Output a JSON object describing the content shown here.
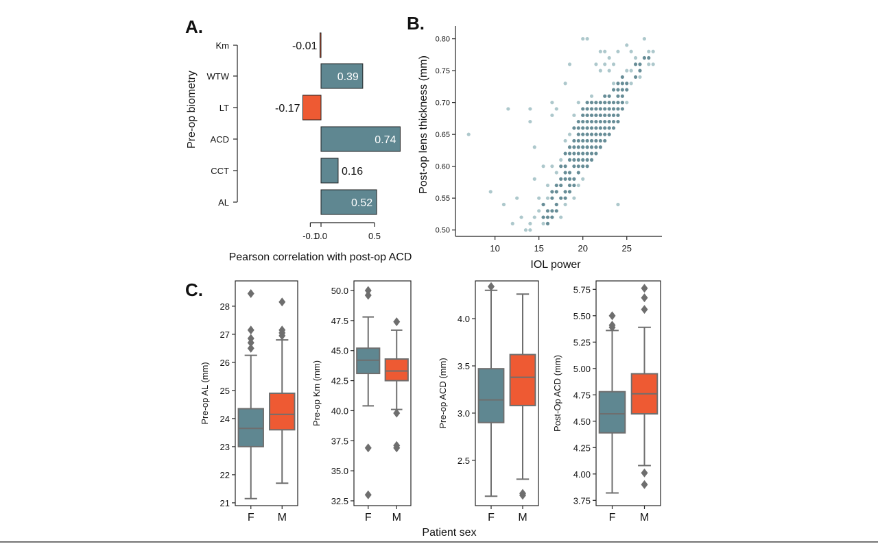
{
  "colors": {
    "teal": "#5f8791",
    "orange": "#ee5a33",
    "scatter_light": "#a9c5c9",
    "scatter_dark": "#5f8791",
    "box_line": "#6e6e6e"
  },
  "chart_data": [
    {
      "panel": "A.",
      "type": "bar",
      "orientation": "horizontal",
      "ylabel": "Pre-op biometry",
      "xlabel": "Pearson correlation with post-op ACD",
      "xticks": [
        "-0.1",
        "0.0",
        "0.5"
      ],
      "xtick_values": [
        -0.1,
        0.0,
        0.5
      ],
      "categories": [
        "Km",
        "WTW",
        "LT",
        "ACD",
        "CCT",
        "AL"
      ],
      "values": [
        -0.01,
        0.39,
        -0.17,
        0.74,
        0.16,
        0.52
      ],
      "value_labels": [
        "-0.01",
        "0.39",
        "-0.17",
        "0.74",
        "0.16",
        "0.52"
      ],
      "bar_colors": [
        "orange",
        "teal",
        "orange",
        "teal",
        "teal",
        "teal"
      ]
    },
    {
      "panel": "B.",
      "type": "scatter",
      "xlabel": "IOL power",
      "ylabel": "Post-op lens thickness (mm)",
      "xlim": [
        5.5,
        29
      ],
      "ylim": [
        0.49,
        0.82
      ],
      "xticks": [
        "10",
        "15",
        "20",
        "25"
      ],
      "xtick_values": [
        10,
        15,
        20,
        25
      ],
      "yticks": [
        "0.50",
        "0.55",
        "0.60",
        "0.65",
        "0.70",
        "0.75",
        "0.80"
      ],
      "ytick_values": [
        0.5,
        0.55,
        0.6,
        0.65,
        0.7,
        0.75,
        0.8
      ],
      "points": [
        [
          7,
          0.65
        ],
        [
          9.5,
          0.56
        ],
        [
          11,
          0.54
        ],
        [
          11.5,
          0.69
        ],
        [
          12,
          0.51
        ],
        [
          12.5,
          0.55
        ],
        [
          13,
          0.52
        ],
        [
          13.5,
          0.5
        ],
        [
          14,
          0.51
        ],
        [
          14,
          0.5
        ],
        [
          14.5,
          0.52
        ],
        [
          14,
          0.69
        ],
        [
          14,
          0.67
        ],
        [
          14.5,
          0.58
        ],
        [
          14.5,
          0.63
        ],
        [
          15,
          0.55
        ],
        [
          15,
          0.53
        ],
        [
          15.5,
          0.52
        ],
        [
          15.5,
          0.51
        ],
        [
          15.5,
          0.54
        ],
        [
          15.5,
          0.6
        ],
        [
          16,
          0.53
        ],
        [
          16,
          0.52
        ],
        [
          16,
          0.51
        ],
        [
          16,
          0.55
        ],
        [
          16,
          0.57
        ],
        [
          16.5,
          0.56
        ],
        [
          16.5,
          0.53
        ],
        [
          16.5,
          0.52
        ],
        [
          16.5,
          0.55
        ],
        [
          16.5,
          0.6
        ],
        [
          16.5,
          0.68
        ],
        [
          16.5,
          0.7
        ],
        [
          17,
          0.53
        ],
        [
          17,
          0.54
        ],
        [
          17,
          0.56
        ],
        [
          17,
          0.57
        ],
        [
          17,
          0.59
        ],
        [
          17,
          0.69
        ],
        [
          17.5,
          0.55
        ],
        [
          17.5,
          0.52
        ],
        [
          17.5,
          0.57
        ],
        [
          17.5,
          0.58
        ],
        [
          17.5,
          0.6
        ],
        [
          17.5,
          0.61
        ],
        [
          18,
          0.54
        ],
        [
          18,
          0.55
        ],
        [
          18,
          0.56
        ],
        [
          18,
          0.58
        ],
        [
          18,
          0.59
        ],
        [
          18,
          0.6
        ],
        [
          18,
          0.62
        ],
        [
          18,
          0.64
        ],
        [
          18,
          0.73
        ],
        [
          18.5,
          0.56
        ],
        [
          18.5,
          0.58
        ],
        [
          18.5,
          0.57
        ],
        [
          18.5,
          0.59
        ],
        [
          18.5,
          0.61
        ],
        [
          18.5,
          0.62
        ],
        [
          18.5,
          0.63
        ],
        [
          18.5,
          0.65
        ],
        [
          18.5,
          0.76
        ],
        [
          19,
          0.55
        ],
        [
          19,
          0.57
        ],
        [
          19,
          0.58
        ],
        [
          19,
          0.6
        ],
        [
          19,
          0.61
        ],
        [
          19,
          0.62
        ],
        [
          19,
          0.63
        ],
        [
          19,
          0.64
        ],
        [
          19,
          0.66
        ],
        [
          19,
          0.68
        ],
        [
          19.5,
          0.57
        ],
        [
          19.5,
          0.59
        ],
        [
          19.5,
          0.6
        ],
        [
          19.5,
          0.61
        ],
        [
          19.5,
          0.62
        ],
        [
          19.5,
          0.63
        ],
        [
          19.5,
          0.64
        ],
        [
          19.5,
          0.65
        ],
        [
          19.5,
          0.66
        ],
        [
          19.5,
          0.67
        ],
        [
          19.5,
          0.7
        ],
        [
          20,
          0.58
        ],
        [
          20,
          0.6
        ],
        [
          20,
          0.61
        ],
        [
          20,
          0.62
        ],
        [
          20,
          0.63
        ],
        [
          20,
          0.64
        ],
        [
          20,
          0.65
        ],
        [
          20,
          0.66
        ],
        [
          20,
          0.67
        ],
        [
          20,
          0.68
        ],
        [
          20,
          0.69
        ],
        [
          20,
          0.8
        ],
        [
          20.5,
          0.6
        ],
        [
          20.5,
          0.61
        ],
        [
          20.5,
          0.62
        ],
        [
          20.5,
          0.63
        ],
        [
          20.5,
          0.64
        ],
        [
          20.5,
          0.65
        ],
        [
          20.5,
          0.66
        ],
        [
          20.5,
          0.67
        ],
        [
          20.5,
          0.68
        ],
        [
          20.5,
          0.69
        ],
        [
          20.5,
          0.7
        ],
        [
          20.5,
          0.8
        ],
        [
          21,
          0.61
        ],
        [
          21,
          0.62
        ],
        [
          21,
          0.63
        ],
        [
          21,
          0.64
        ],
        [
          21,
          0.65
        ],
        [
          21,
          0.66
        ],
        [
          21,
          0.67
        ],
        [
          21,
          0.68
        ],
        [
          21,
          0.69
        ],
        [
          21,
          0.7
        ],
        [
          21,
          0.71
        ],
        [
          21.5,
          0.62
        ],
        [
          21.5,
          0.63
        ],
        [
          21.5,
          0.64
        ],
        [
          21.5,
          0.65
        ],
        [
          21.5,
          0.66
        ],
        [
          21.5,
          0.67
        ],
        [
          21.5,
          0.68
        ],
        [
          21.5,
          0.69
        ],
        [
          21.5,
          0.7
        ],
        [
          21.5,
          0.76
        ],
        [
          22,
          0.63
        ],
        [
          22,
          0.64
        ],
        [
          22,
          0.65
        ],
        [
          22,
          0.66
        ],
        [
          22,
          0.67
        ],
        [
          22,
          0.68
        ],
        [
          22,
          0.69
        ],
        [
          22,
          0.7
        ],
        [
          22,
          0.75
        ],
        [
          22,
          0.78
        ],
        [
          22.5,
          0.64
        ],
        [
          22.5,
          0.65
        ],
        [
          22.5,
          0.66
        ],
        [
          22.5,
          0.67
        ],
        [
          22.5,
          0.68
        ],
        [
          22.5,
          0.69
        ],
        [
          22.5,
          0.7
        ],
        [
          22.5,
          0.71
        ],
        [
          22.5,
          0.76
        ],
        [
          22.5,
          0.78
        ],
        [
          23,
          0.65
        ],
        [
          23,
          0.66
        ],
        [
          23,
          0.67
        ],
        [
          23,
          0.68
        ],
        [
          23,
          0.69
        ],
        [
          23,
          0.7
        ],
        [
          23,
          0.71
        ],
        [
          23,
          0.75
        ],
        [
          23,
          0.77
        ],
        [
          23.5,
          0.66
        ],
        [
          23.5,
          0.67
        ],
        [
          23.5,
          0.68
        ],
        [
          23.5,
          0.69
        ],
        [
          23.5,
          0.7
        ],
        [
          23.5,
          0.72
        ],
        [
          23.5,
          0.73
        ],
        [
          23.5,
          0.76
        ],
        [
          24,
          0.67
        ],
        [
          24,
          0.68
        ],
        [
          24,
          0.69
        ],
        [
          24,
          0.7
        ],
        [
          24,
          0.71
        ],
        [
          24,
          0.72
        ],
        [
          24,
          0.73
        ],
        [
          24,
          0.78
        ],
        [
          24,
          0.54
        ],
        [
          24.5,
          0.69
        ],
        [
          24.5,
          0.7
        ],
        [
          24.5,
          0.71
        ],
        [
          24.5,
          0.72
        ],
        [
          24.5,
          0.73
        ],
        [
          24.5,
          0.74
        ],
        [
          25,
          0.7
        ],
        [
          25,
          0.72
        ],
        [
          25,
          0.73
        ],
        [
          25,
          0.75
        ],
        [
          25,
          0.79
        ],
        [
          25.5,
          0.73
        ],
        [
          25.5,
          0.75
        ],
        [
          25.5,
          0.78
        ],
        [
          26,
          0.74
        ],
        [
          26,
          0.76
        ],
        [
          26,
          0.77
        ],
        [
          26.5,
          0.74
        ],
        [
          26.5,
          0.75
        ],
        [
          26.5,
          0.76
        ],
        [
          27,
          0.77
        ],
        [
          27,
          0.8
        ],
        [
          27.5,
          0.76
        ],
        [
          27.5,
          0.77
        ],
        [
          27.5,
          0.78
        ],
        [
          28,
          0.76
        ],
        [
          28,
          0.78
        ]
      ]
    },
    {
      "panel": "C.",
      "type": "box",
      "ylabel": "Pre-op AL (mm)",
      "categories": [
        "F",
        "M"
      ],
      "ylim": [
        20.9,
        28.9
      ],
      "yticks": [
        "21",
        "22",
        "23",
        "24",
        "25",
        "26",
        "27",
        "28"
      ],
      "ytick_values": [
        21,
        22,
        23,
        24,
        25,
        26,
        27,
        28
      ],
      "boxes": [
        {
          "group": "F",
          "color": "teal",
          "min": 21.15,
          "q1": 23.0,
          "median": 23.65,
          "q3": 24.35,
          "max": 26.25,
          "outliers": [
            26.5,
            26.7,
            26.85,
            27.15,
            28.45
          ]
        },
        {
          "group": "M",
          "color": "orange",
          "min": 21.7,
          "q1": 23.6,
          "median": 24.15,
          "q3": 24.9,
          "max": 26.8,
          "outliers": [
            26.95,
            27.05,
            27.15,
            28.15
          ]
        }
      ]
    },
    {
      "panel": "C.",
      "type": "box",
      "ylabel": "Pre-op Km  (mm)",
      "categories": [
        "F",
        "M"
      ],
      "ylim": [
        32.1,
        50.8
      ],
      "yticks": [
        "32.5",
        "35.0",
        "37.5",
        "40.0",
        "42.5",
        "45.0",
        "47.5",
        "50.0"
      ],
      "ytick_values": [
        32.5,
        35,
        37.5,
        40,
        42.5,
        45,
        47.5,
        50
      ],
      "boxes": [
        {
          "group": "F",
          "color": "teal",
          "min": 40.4,
          "q1": 43.1,
          "median": 44.2,
          "q3": 45.2,
          "max": 47.8,
          "outliers": [
            36.9,
            33.0,
            49.6,
            50.0
          ]
        },
        {
          "group": "M",
          "color": "orange",
          "min": 40.1,
          "q1": 42.5,
          "median": 43.3,
          "q3": 44.3,
          "max": 46.7,
          "outliers": [
            39.8,
            37.1,
            36.9,
            47.4
          ]
        }
      ]
    },
    {
      "panel": "C.",
      "type": "box",
      "ylabel": "Pre-op ACD  (mm)",
      "categories": [
        "F",
        "M"
      ],
      "ylim": [
        2.02,
        4.4
      ],
      "yticks": [
        "2.5",
        "3.0",
        "3.5",
        "4.0"
      ],
      "ytick_values": [
        2.5,
        3.0,
        3.5,
        4.0
      ],
      "boxes": [
        {
          "group": "F",
          "color": "teal",
          "min": 2.12,
          "q1": 2.9,
          "median": 3.14,
          "q3": 3.47,
          "max": 4.3,
          "outliers": [
            4.34
          ]
        },
        {
          "group": "M",
          "color": "orange",
          "min": 2.3,
          "q1": 3.08,
          "median": 3.38,
          "q3": 3.62,
          "max": 4.26,
          "outliers": [
            2.13,
            2.15
          ]
        }
      ]
    },
    {
      "panel": "C.",
      "type": "box",
      "ylabel": "Post-Op ACD  (mm)",
      "categories": [
        "F",
        "M"
      ],
      "ylim": [
        3.7,
        5.83
      ],
      "yticks": [
        "3.75",
        "4.00",
        "4.25",
        "4.50",
        "4.75",
        "5.00",
        "5.25",
        "5.50",
        "5.75"
      ],
      "ytick_values": [
        3.75,
        4.0,
        4.25,
        4.5,
        4.75,
        5.0,
        5.25,
        5.5,
        5.75
      ],
      "boxes": [
        {
          "group": "F",
          "color": "teal",
          "min": 3.82,
          "q1": 4.39,
          "median": 4.57,
          "q3": 4.78,
          "max": 5.36,
          "outliers": [
            5.39,
            5.41,
            5.5
          ]
        },
        {
          "group": "M",
          "color": "orange",
          "min": 4.08,
          "q1": 4.57,
          "median": 4.76,
          "q3": 4.95,
          "max": 5.39,
          "outliers": [
            4.01,
            3.9,
            5.56,
            5.67,
            5.76
          ]
        }
      ]
    }
  ],
  "shared_xlabel_C": "Patient sex"
}
